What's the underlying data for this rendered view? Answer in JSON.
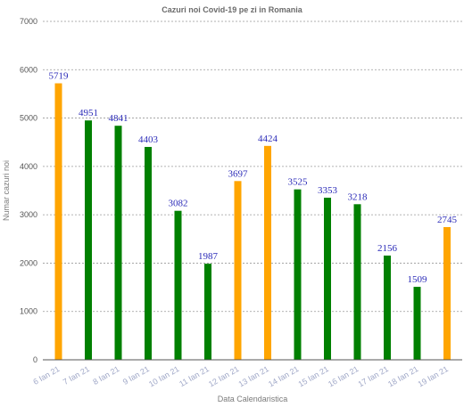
{
  "chart_data": {
    "type": "bar",
    "title": "Cazuri noi Covid-19 pe zi in Romania",
    "xlabel": "Data Calendaristica",
    "ylabel": "Numar cazuri noi",
    "ylim": [
      0,
      7000
    ],
    "yticks": [
      0,
      1000,
      2000,
      3000,
      4000,
      5000,
      6000,
      7000
    ],
    "grid": true,
    "categories": [
      "6 Ian 21",
      "7 Ian 21",
      "8 Ian 21",
      "9 Ian 21",
      "10 Ian 21",
      "11 Ian 21",
      "12 Ian 21",
      "13 Ian 21",
      "14 Ian 21",
      "15 Ian 21",
      "16 Ian 21",
      "17 Ian 21",
      "18 Ian 21",
      "19 Ian 21"
    ],
    "values": [
      5719,
      4951,
      4841,
      4403,
      3082,
      1987,
      3697,
      4424,
      3525,
      3353,
      3218,
      2156,
      1509,
      2745
    ],
    "colors": [
      "#ffa500",
      "#008000",
      "#008000",
      "#008000",
      "#008000",
      "#008000",
      "#ffa500",
      "#ffa500",
      "#008000",
      "#008000",
      "#008000",
      "#008000",
      "#008000",
      "#ffa500"
    ]
  }
}
